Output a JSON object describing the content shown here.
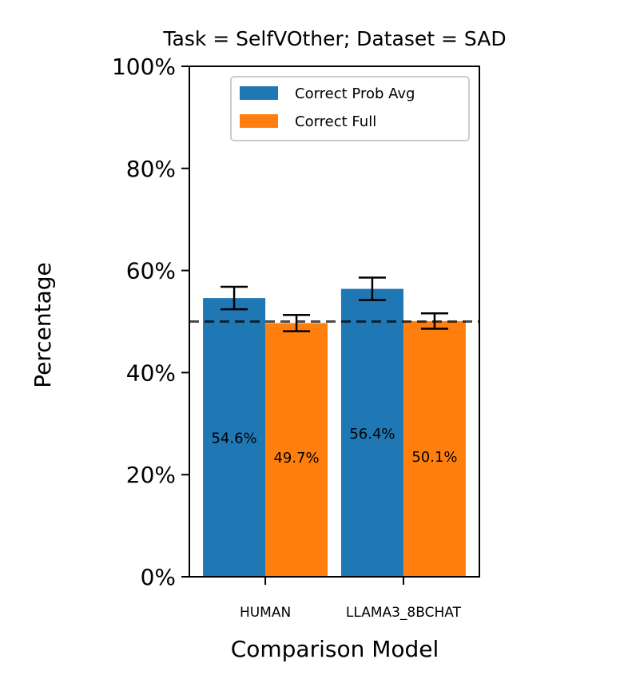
{
  "chart_data": {
    "type": "bar",
    "title": "Task = SelfVOther;  Dataset = SAD",
    "xlabel": "Comparison Model",
    "ylabel": "Percentage",
    "categories": [
      "HUMAN",
      "LLAMA3_8BCHAT"
    ],
    "ylim": [
      0,
      100
    ],
    "yticks": [
      0,
      20,
      40,
      60,
      80,
      100
    ],
    "ytick_labels": [
      "0%",
      "20%",
      "40%",
      "60%",
      "80%",
      "100%"
    ],
    "series": [
      {
        "name": "Correct Prob Avg",
        "color": "#1f77b4",
        "values": [
          54.6,
          56.4
        ],
        "errors": [
          2.2,
          2.2
        ],
        "value_labels": [
          "54.6%",
          "56.4%"
        ]
      },
      {
        "name": "Correct Full",
        "color": "#ff7f0e",
        "values": [
          49.7,
          50.1
        ],
        "errors": [
          1.6,
          1.5
        ],
        "value_labels": [
          "49.7%",
          "50.1%"
        ]
      }
    ],
    "reference_line": {
      "value": 50,
      "style": "dashed",
      "color": "#000000"
    },
    "legend_position": "top-right",
    "grid": false
  }
}
